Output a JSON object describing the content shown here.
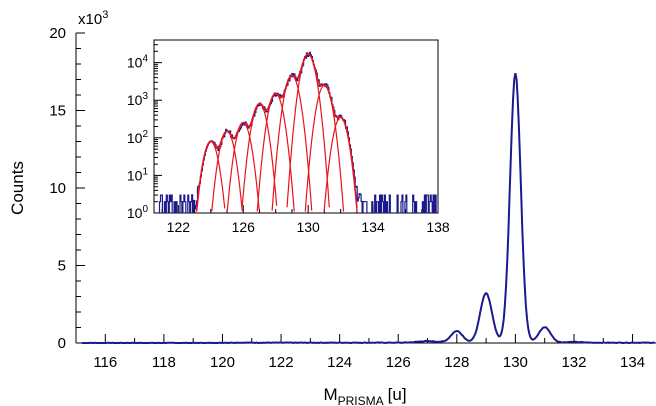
{
  "chart_data": {
    "type": "line",
    "main": {
      "xlabel": "M",
      "xlabel_sub": "PRISMA",
      "xlabel_unit": "[u]",
      "ylabel": "Counts",
      "y_multiplier_base": "x10",
      "y_multiplier_exp": "3",
      "xlim": [
        115,
        134.8
      ],
      "ylim": [
        0,
        20
      ],
      "xticks": [
        "116",
        "118",
        "120",
        "122",
        "124",
        "126",
        "128",
        "130",
        "132",
        "134"
      ],
      "yticks": [
        "0",
        "5",
        "10",
        "15",
        "20"
      ],
      "series_color": "#1a1a8c",
      "peaks": [
        {
          "center": 127.0,
          "amplitude": 0.1,
          "sigma": 0.35
        },
        {
          "center": 128.0,
          "amplitude": 0.75,
          "sigma": 0.2
        },
        {
          "center": 129.0,
          "amplitude": 3.2,
          "sigma": 0.2
        },
        {
          "center": 130.0,
          "amplitude": 17.4,
          "sigma": 0.18
        },
        {
          "center": 131.0,
          "amplitude": 1.0,
          "sigma": 0.2
        },
        {
          "center": 132.0,
          "amplitude": 0.05,
          "sigma": 0.25
        }
      ]
    },
    "inset": {
      "scale": "log",
      "xlim": [
        120.5,
        138
      ],
      "ylim": [
        1,
        40000
      ],
      "xticks": [
        "122",
        "126",
        "130",
        "134",
        "138"
      ],
      "yticks": [
        {
          "base": "10",
          "exp": "0",
          "value": 1
        },
        {
          "base": "10",
          "exp": "1",
          "value": 10
        },
        {
          "base": "10",
          "exp": "2",
          "value": 100
        },
        {
          "base": "10",
          "exp": "3",
          "value": 1000
        },
        {
          "base": "10",
          "exp": "4",
          "value": 10000
        }
      ],
      "data_color": "#1a1a8c",
      "fit_color": "#e8141c",
      "fit_peaks": [
        {
          "center": 124.0,
          "height": 80,
          "sigma": 0.3
        },
        {
          "center": 125.0,
          "height": 150,
          "sigma": 0.3
        },
        {
          "center": 126.0,
          "height": 250,
          "sigma": 0.3
        },
        {
          "center": 127.0,
          "height": 800,
          "sigma": 0.3
        },
        {
          "center": 128.0,
          "height": 1500,
          "sigma": 0.3
        },
        {
          "center": 129.0,
          "height": 4500,
          "sigma": 0.3
        },
        {
          "center": 130.0,
          "height": 17000,
          "sigma": 0.3
        },
        {
          "center": 131.0,
          "height": 2500,
          "sigma": 0.3
        },
        {
          "center": 132.0,
          "height": 350,
          "sigma": 0.3
        }
      ]
    }
  }
}
